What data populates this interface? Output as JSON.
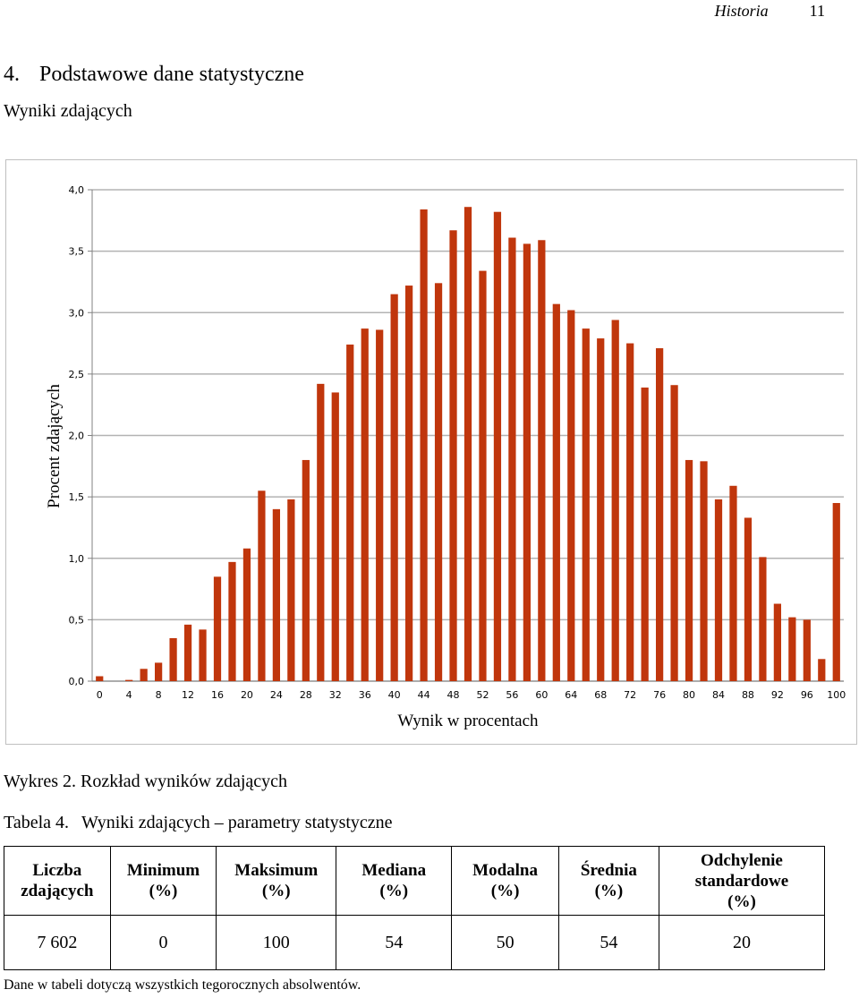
{
  "running_header": {
    "subject": "Historia",
    "page_number": "11"
  },
  "section": {
    "number": "4.",
    "title": "Podstawowe dane statystyczne"
  },
  "subsection_title": "Wyniki zdających",
  "figure_caption": "Wykres 2. Rozkład wyników zdających",
  "chart_data": {
    "type": "bar",
    "title": "",
    "xlabel": "Wynik w procentach",
    "ylabel": "Procent zdających",
    "ylim": [
      0,
      4
    ],
    "y_ticks": [
      "0,0",
      "0,5",
      "1,0",
      "1,5",
      "2,0",
      "2,5",
      "3,0",
      "3,5",
      "4,0"
    ],
    "x_tick_labels": [
      "0",
      "4",
      "8",
      "12",
      "16",
      "20",
      "24",
      "28",
      "32",
      "36",
      "40",
      "44",
      "48",
      "52",
      "56",
      "60",
      "64",
      "68",
      "72",
      "76",
      "80",
      "84",
      "88",
      "92",
      "96",
      "100"
    ],
    "grid": "horizontal",
    "bar_color": "#C0360C",
    "x": [
      0,
      2,
      4,
      6,
      8,
      10,
      12,
      14,
      16,
      18,
      20,
      22,
      24,
      26,
      28,
      30,
      32,
      34,
      36,
      38,
      40,
      42,
      44,
      46,
      48,
      50,
      52,
      54,
      56,
      58,
      60,
      62,
      64,
      66,
      68,
      70,
      72,
      74,
      76,
      78,
      80,
      82,
      84,
      86,
      88,
      90,
      92,
      94,
      96,
      98,
      100
    ],
    "values": [
      0.04,
      0.0,
      0.01,
      0.1,
      0.15,
      0.35,
      0.46,
      0.42,
      0.85,
      0.97,
      1.08,
      1.55,
      1.4,
      1.48,
      1.8,
      2.42,
      2.35,
      2.74,
      2.87,
      2.86,
      3.15,
      3.22,
      3.84,
      3.24,
      3.67,
      3.86,
      3.34,
      3.82,
      3.61,
      3.56,
      3.59,
      3.07,
      3.02,
      2.87,
      2.79,
      2.94,
      2.75,
      2.39,
      2.71,
      2.41,
      1.8,
      1.79,
      1.48,
      1.59,
      1.33,
      1.01,
      0.63,
      0.52,
      0.5,
      0.18,
      1.45
    ]
  },
  "table": {
    "label": "Tabela 4.",
    "title": "Wyniki zdających – parametry statystyczne",
    "headers": [
      [
        "Liczba",
        "zdających"
      ],
      [
        "Minimum",
        "(%)"
      ],
      [
        "Maksimum",
        "(%)"
      ],
      [
        "Mediana",
        "(%)"
      ],
      [
        "Modalna",
        "(%)"
      ],
      [
        "Średnia",
        "(%)"
      ],
      [
        "Odchylenie",
        "standardowe",
        "(%)"
      ]
    ],
    "row": [
      "7 602",
      "0",
      "100",
      "54",
      "50",
      "54",
      "20"
    ]
  },
  "footnote": "Dane w tabeli dotyczą wszystkich tegorocznych absolwentów."
}
